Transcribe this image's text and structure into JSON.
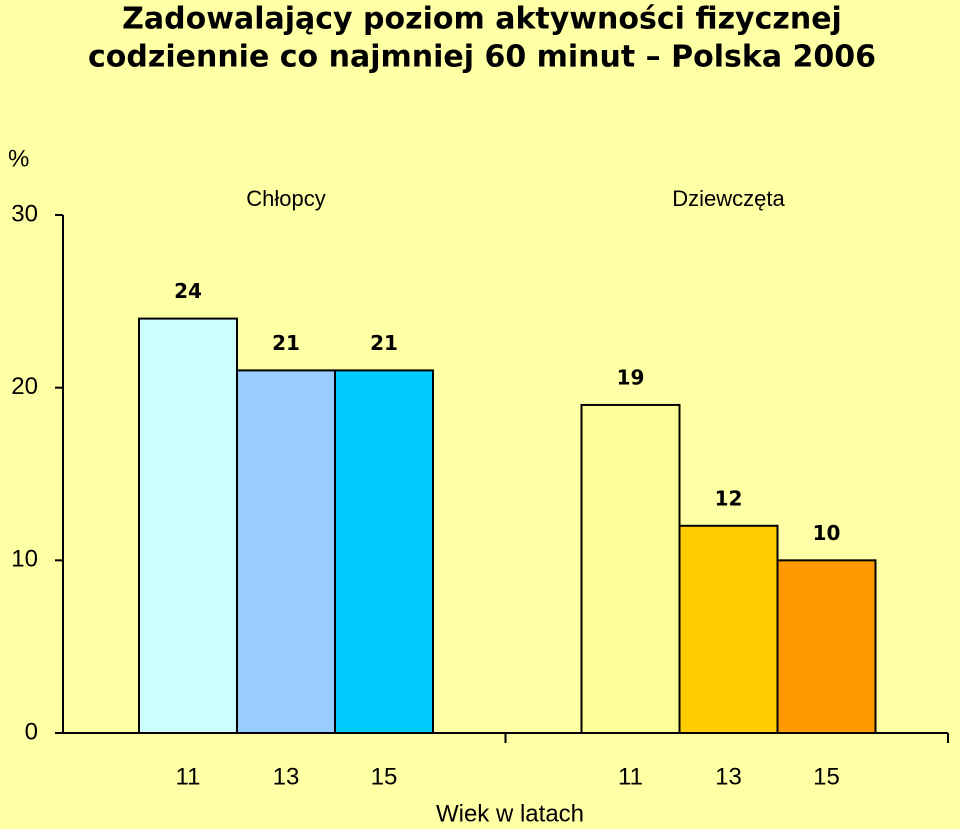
{
  "chart_data": {
    "type": "bar",
    "title": [
      "Zadowalający poziom aktywności fizycznej",
      "codziennie co najmniej 60 minut – Polska 2006"
    ],
    "y_unit": "%",
    "x_label": "Wiek w latach",
    "groups": [
      {
        "name": "Chłopcy",
        "categories": [
          "11",
          "13",
          "15"
        ],
        "values": [
          24,
          21,
          21
        ],
        "colors": [
          "#ccffff",
          "#99ccff",
          "#00ccff"
        ]
      },
      {
        "name": "Dziewczęta",
        "categories": [
          "11",
          "13",
          "15"
        ],
        "values": [
          19,
          12,
          10
        ],
        "colors": [
          "#ffff99",
          "#ffcc00",
          "#ff9900"
        ]
      }
    ],
    "ylim": [
      0,
      30
    ],
    "yticks": [
      0,
      10,
      20,
      30
    ],
    "grid": false
  }
}
